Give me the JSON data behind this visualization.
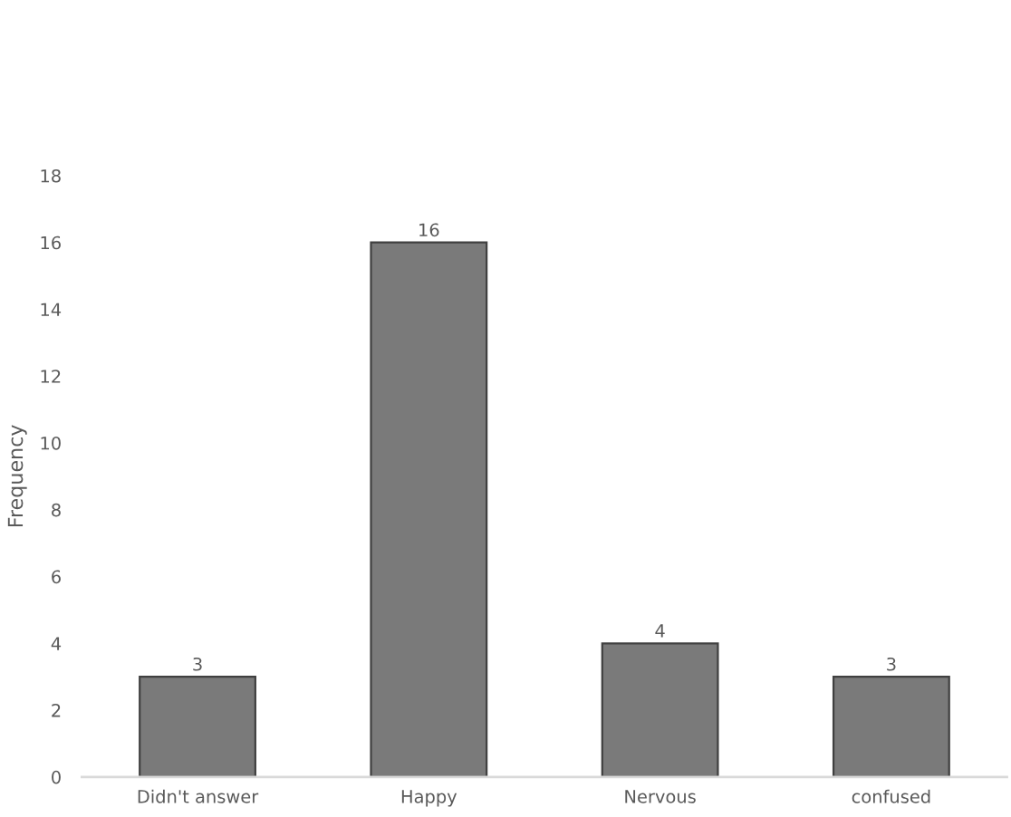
{
  "chart_data": {
    "type": "bar",
    "ylabel": "Frequency",
    "categories": [
      "Didn't answer",
      "Happy",
      "Nervous",
      "confused"
    ],
    "values": [
      3,
      16,
      4,
      3
    ],
    "color": "#7a7a7a",
    "ylim": [
      0,
      18
    ],
    "yticks": [
      0,
      2,
      4,
      6,
      8,
      10,
      12,
      14,
      16,
      18
    ],
    "grid": false,
    "data_labels": true
  }
}
